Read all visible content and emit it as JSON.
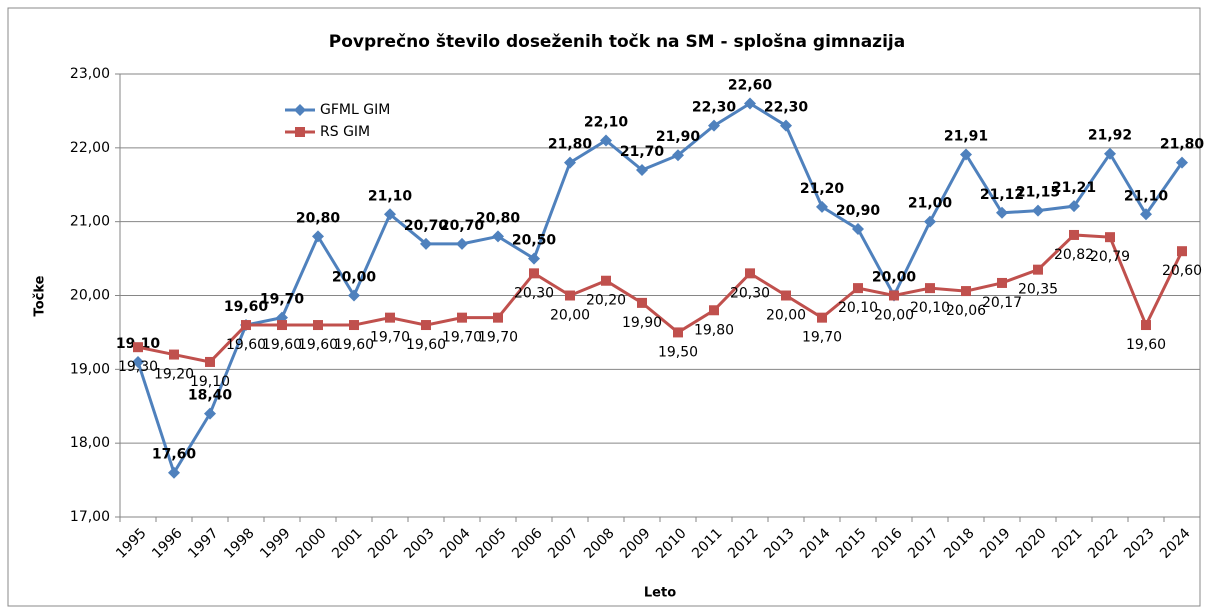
{
  "chart_data": {
    "type": "line",
    "title": "Povprečno število doseženih točk na SM - splošna gimnazija",
    "x_label": "Leto",
    "y_label": "Točke",
    "categories": [
      "1995",
      "1996",
      "1997",
      "1998",
      "1999",
      "2000",
      "2001",
      "2002",
      "2003",
      "2004",
      "2005",
      "2006",
      "2007",
      "2008",
      "2009",
      "2010",
      "2011",
      "2012",
      "2013",
      "2014",
      "2015",
      "2016",
      "2017",
      "2018",
      "2019",
      "2020",
      "2021",
      "2022",
      "2023",
      "2024"
    ],
    "series": [
      {
        "name": "GFML GIM",
        "color": "#4f81bd",
        "marker": "diamond",
        "values": [
          19.1,
          17.6,
          18.4,
          19.6,
          19.7,
          20.8,
          20.0,
          21.1,
          20.7,
          20.7,
          20.8,
          20.5,
          21.8,
          22.1,
          21.7,
          21.9,
          22.3,
          22.6,
          22.3,
          21.2,
          20.9,
          20.0,
          21.0,
          21.91,
          21.12,
          21.15,
          21.21,
          21.92,
          21.1,
          21.8
        ],
        "value_labels": [
          "19,10",
          "17,60",
          "18,40",
          "19,60",
          "19,70",
          "20,80",
          "20,00",
          "21,10",
          "20,70",
          "20,70",
          "20,80",
          "20,50",
          "21,80",
          "22,10",
          "21,70",
          "21,90",
          "22,30",
          "22,60",
          "22,30",
          "21,20",
          "20,90",
          "20,00",
          "21,00",
          "21,91",
          "21,12",
          "21,15",
          "21,21",
          "21,92",
          "21,10",
          "21,80"
        ]
      },
      {
        "name": "RS GIM",
        "color": "#c0504d",
        "marker": "square",
        "values": [
          19.3,
          19.2,
          19.1,
          19.6,
          19.6,
          19.6,
          19.6,
          19.7,
          19.6,
          19.7,
          19.7,
          20.3,
          20.0,
          20.2,
          19.9,
          19.5,
          19.8,
          20.3,
          20.0,
          19.7,
          20.1,
          20.0,
          20.1,
          20.06,
          20.17,
          20.35,
          20.82,
          20.79,
          19.6,
          20.6
        ],
        "value_labels": [
          "19,30",
          "19,20",
          "19,10",
          "19,60",
          "19,60",
          "19,60",
          "19,60",
          "19,70",
          "19,60",
          "19,70",
          "19,70",
          "20,30",
          "20,00",
          "20,20",
          "19,90",
          "19,50",
          "19,80",
          "20,30",
          "20,00",
          "19,70",
          "20,10",
          "20,00",
          "20,10",
          "20,06",
          "20,17",
          "20,35",
          "20,82",
          "20,79",
          "19,60",
          "20,60"
        ]
      }
    ],
    "ylim": [
      17,
      23
    ],
    "yticks": [
      {
        "value": 17,
        "label": "17,00"
      },
      {
        "value": 18,
        "label": "18,00"
      },
      {
        "value": 19,
        "label": "19,00"
      },
      {
        "value": 20,
        "label": "20,00"
      },
      {
        "value": 21,
        "label": "21,00"
      },
      {
        "value": 22,
        "label": "22,00"
      },
      {
        "value": 23,
        "label": "23,00"
      }
    ],
    "grid": true,
    "legend": "upper-left"
  }
}
